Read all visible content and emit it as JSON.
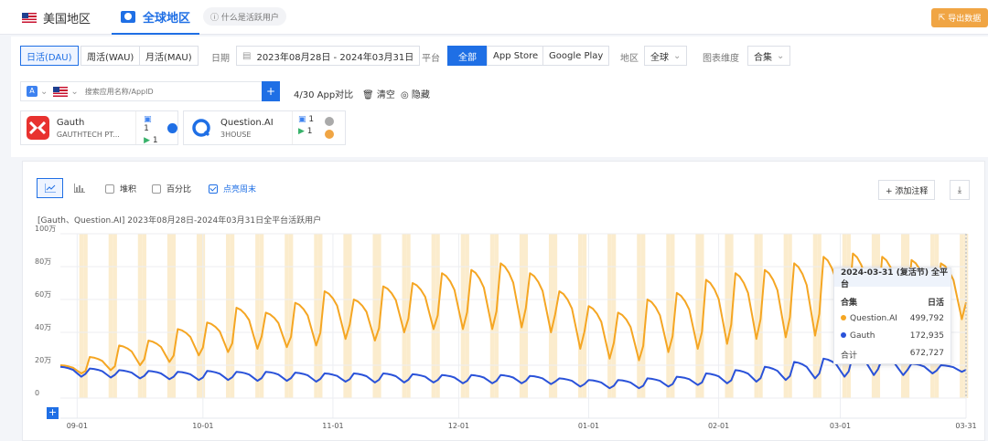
{
  "region_tabs": [
    {
      "label": "美国地区",
      "active": false
    },
    {
      "label": "全球地区",
      "active": true
    }
  ],
  "what_link": "ⓘ 什么是活跃用户",
  "export_label": "导出数据",
  "period_tabs": [
    "日活(DAU)",
    "周活(WAU)",
    "月活(MAU)"
  ],
  "date_label": "日期",
  "date_range": "2023年08月28日  -  2024年03月31日",
  "platform_label": "平台",
  "platforms": [
    "全部",
    "App Store",
    "Google Play"
  ],
  "region_label": "地区",
  "region_value": "全球",
  "dimension_label": "图表维度",
  "dimension_value": "合集",
  "search_placeholder": "搜索应用名称/AppID",
  "add_button": "+",
  "compare_count": "4/30 App对比",
  "clear_label": "清空",
  "hide_label": "隐藏",
  "apps": [
    {
      "name": "Gauth",
      "publisher": "GAUTHTECH PT...",
      "ios": "1",
      "android": "1"
    },
    {
      "name": "Question.AI",
      "publisher": "3HOUSE",
      "ios": "1",
      "android": "1"
    }
  ],
  "chart_options": {
    "stack": "堆积",
    "percent": "百分比",
    "weekend": "点亮周末"
  },
  "annotate_label": "+ 添加注释",
  "colors": {
    "accent": "#1f6fe5",
    "question_ai": "#f5a623",
    "gauth": "#2a52d9",
    "weekend_band": "#fbeccd"
  },
  "tooltip": {
    "title": "2024-03-31 (复活节) 全平台",
    "col_left": "合集",
    "col_right": "日活",
    "rows": [
      {
        "name": "Question.AI",
        "value": "499,792"
      },
      {
        "name": "Gauth",
        "value": "172,935"
      },
      {
        "name": "合计",
        "value": "672,727"
      }
    ]
  },
  "chart_data": {
    "type": "line",
    "title": "[Gauth、Question.AI] 2023年08月28日-2024年03月31日全平台活跃用户",
    "x_start": "2023-08-28",
    "x_end": "2024-03-31",
    "x_ticks": [
      "09-01",
      "10-01",
      "11-01",
      "12-01",
      "01-01",
      "02-01",
      "03-01",
      "03-31"
    ],
    "y_ticks": [
      "100万",
      "80万",
      "60万",
      "40万",
      "20万",
      "0"
    ],
    "ylim": [
      0,
      1000000
    ],
    "weekend_highlight": true,
    "series": [
      {
        "name": "Question.AI",
        "weekly_peaks": [
          200000,
          250000,
          320000,
          350000,
          420000,
          460000,
          550000,
          520000,
          580000,
          650000,
          600000,
          680000,
          700000,
          760000,
          780000,
          820000,
          760000,
          650000,
          560000,
          520000,
          600000,
          640000,
          720000,
          760000,
          780000,
          820000,
          860000,
          880000,
          860000,
          840000,
          820000
        ],
        "weekly_troughs": [
          150000,
          170000,
          200000,
          220000,
          260000,
          280000,
          300000,
          310000,
          320000,
          360000,
          350000,
          400000,
          420000,
          420000,
          420000,
          430000,
          400000,
          300000,
          240000,
          230000,
          280000,
          300000,
          330000,
          360000,
          370000,
          380000,
          400000,
          420000,
          430000,
          450000,
          480000
        ]
      },
      {
        "name": "Gauth",
        "weekly_peaks": [
          190000,
          180000,
          170000,
          165000,
          160000,
          165000,
          160000,
          160000,
          155000,
          150000,
          150000,
          150000,
          145000,
          140000,
          140000,
          140000,
          135000,
          120000,
          110000,
          110000,
          120000,
          130000,
          150000,
          170000,
          190000,
          220000,
          240000,
          260000,
          240000,
          210000,
          200000
        ],
        "weekly_troughs": [
          130000,
          125000,
          120000,
          115000,
          110000,
          110000,
          105000,
          105000,
          100000,
          100000,
          95000,
          95000,
          95000,
          90000,
          90000,
          90000,
          85000,
          70000,
          60000,
          60000,
          70000,
          80000,
          90000,
          100000,
          110000,
          120000,
          130000,
          140000,
          140000,
          150000,
          160000
        ]
      }
    ]
  }
}
